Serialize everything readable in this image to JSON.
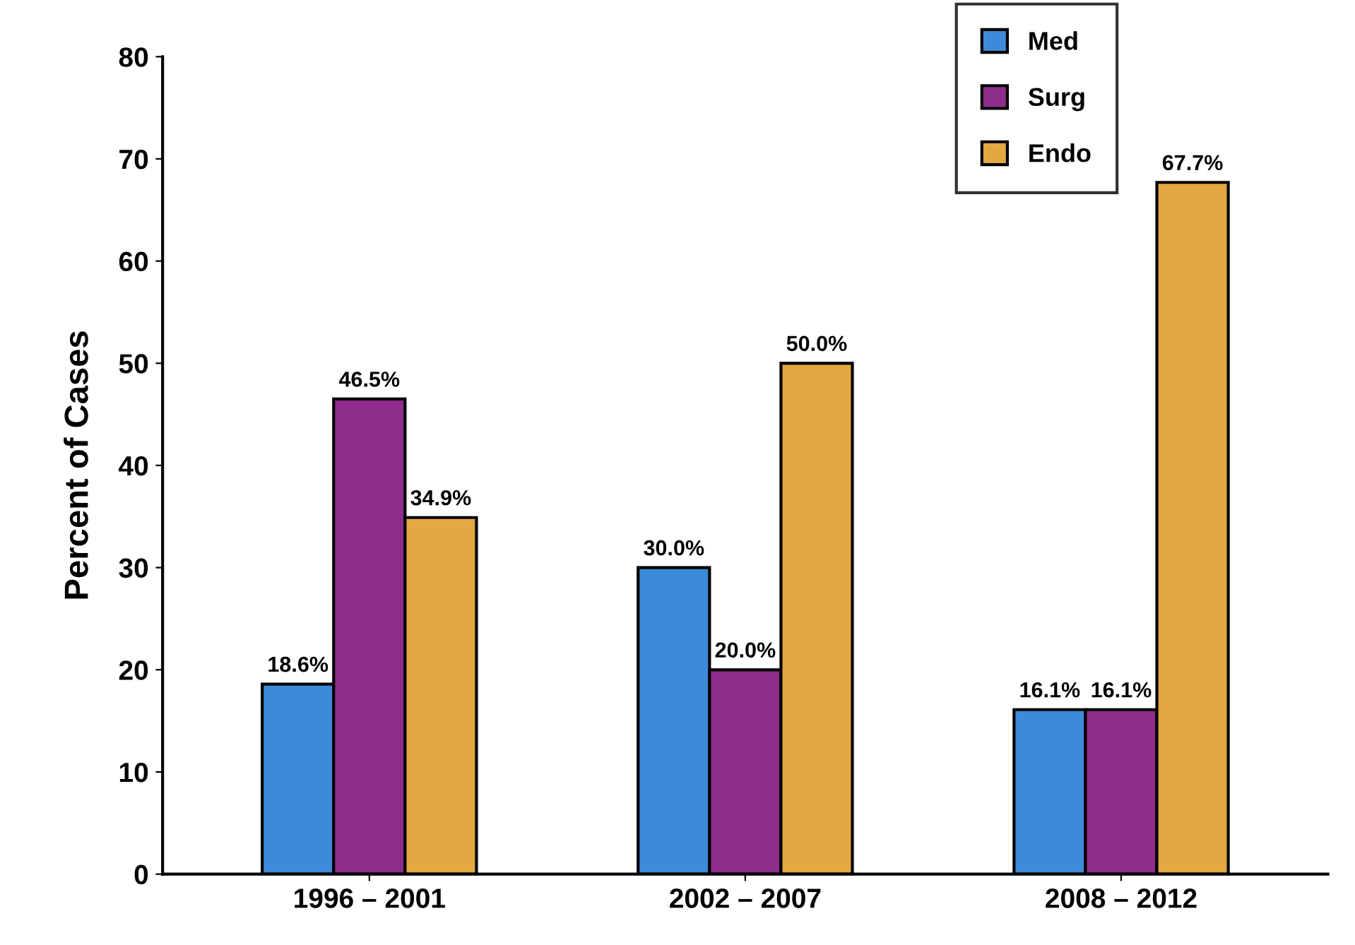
{
  "chart_data": {
    "type": "bar",
    "ylabel": "Percent of Cases",
    "categories": [
      "1996 – 2001",
      "2002 – 2007",
      "2008 – 2012"
    ],
    "series": [
      {
        "name": "Med",
        "color": "#3d8bd8",
        "values": [
          18.6,
          30.0,
          16.1
        ],
        "value_labels": [
          "18.6%",
          "30.0%",
          "16.1%"
        ]
      },
      {
        "name": "Surg",
        "color": "#8e2d8c",
        "values": [
          46.5,
          20.0,
          16.1
        ],
        "value_labels": [
          "46.5%",
          "20.0%",
          "16.1%"
        ]
      },
      {
        "name": "Endo",
        "color": "#e3a842",
        "values": [
          34.9,
          50.0,
          67.7
        ],
        "value_labels": [
          "34.9%",
          "50.0%",
          "67.7%"
        ]
      }
    ],
    "ylim": [
      0,
      80
    ],
    "yticks": [
      0,
      10,
      20,
      30,
      40,
      50,
      60,
      70,
      80
    ],
    "grid": false,
    "legend": "top right"
  }
}
